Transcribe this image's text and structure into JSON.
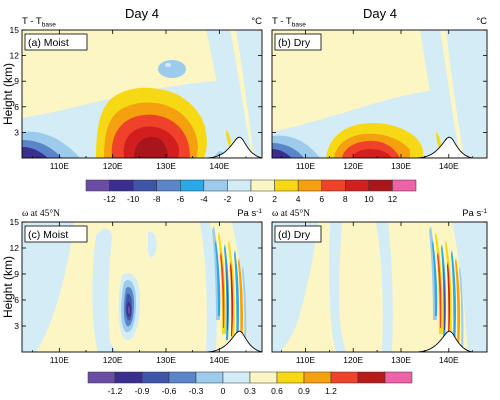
{
  "colors": {
    "t_scale": [
      "#6a4ea4",
      "#3a2e8e",
      "#3f55a8",
      "#5a85c8",
      "#2aa8e8",
      "#9ccbec",
      "#d4ecf6",
      "#fbf6c4",
      "#f7d814",
      "#f5a00e",
      "#f0422a",
      "#d21e1e",
      "#a8161c",
      "#ee62a8"
    ],
    "omega_scale": [
      "#6a4ea4",
      "#3a2e8e",
      "#3f55a8",
      "#5a85c8",
      "#9ccbec",
      "#d4ecf6",
      "#fbf6c4",
      "#f7d814",
      "#f5a00e",
      "#f0422a",
      "#b81a1a",
      "#ee62a8"
    ]
  },
  "chart_data": [
    {
      "type": "heatmap",
      "panel": "(a) Moist",
      "title": "Day 4",
      "left_label": "T - T",
      "left_label_sub": "base",
      "unit": "°C",
      "ylabel": "Height (km)",
      "xlabel": "",
      "x_ticks": [
        "110E",
        "120E",
        "130E",
        "140E"
      ],
      "y_ticks": [
        "3",
        "6",
        "9",
        "12",
        "15"
      ],
      "ylim": [
        0,
        15
      ],
      "xlim": [
        103,
        148
      ],
      "mountain_peak_lon": 140,
      "mountain_peak_height_km": 2
    },
    {
      "type": "heatmap",
      "panel": "(b) Dry",
      "title": "Day 4",
      "left_label": "T - T",
      "left_label_sub": "base",
      "unit": "°C",
      "xlabel": "",
      "x_ticks": [
        "110E",
        "120E",
        "130E",
        "140E"
      ],
      "ylim": [
        0,
        15
      ],
      "xlim": [
        103,
        148
      ]
    },
    {
      "type": "heatmap",
      "panel": "(c) Moist",
      "left_label": "ω at 45°N",
      "unit": "Pa s",
      "unit_sup": "-1",
      "ylabel": "Height (km)",
      "x_ticks": [
        "110E",
        "120E",
        "130E",
        "140E"
      ],
      "y_ticks": [
        "3",
        "6",
        "9",
        "12",
        "15"
      ],
      "ylim": [
        0,
        15
      ],
      "xlim": [
        103,
        148
      ]
    },
    {
      "type": "heatmap",
      "panel": "(d) Dry",
      "left_label": "ω at 45°N",
      "unit": "Pa s",
      "unit_sup": "-1",
      "x_ticks": [
        "110E",
        "120E",
        "130E",
        "140E"
      ],
      "ylim": [
        0,
        15
      ],
      "xlim": [
        103,
        148
      ]
    }
  ],
  "colorbars": [
    {
      "labels": [
        "-12",
        "-10",
        "-8",
        "-6",
        "-4",
        "-2",
        "0",
        "2",
        "4",
        "6",
        "8",
        "10",
        "12"
      ]
    },
    {
      "labels": [
        "-1.2",
        "-0.9",
        "-0.6",
        "-0.3",
        "0",
        "0.3",
        "0.6",
        "0.9",
        "1.2"
      ]
    }
  ]
}
